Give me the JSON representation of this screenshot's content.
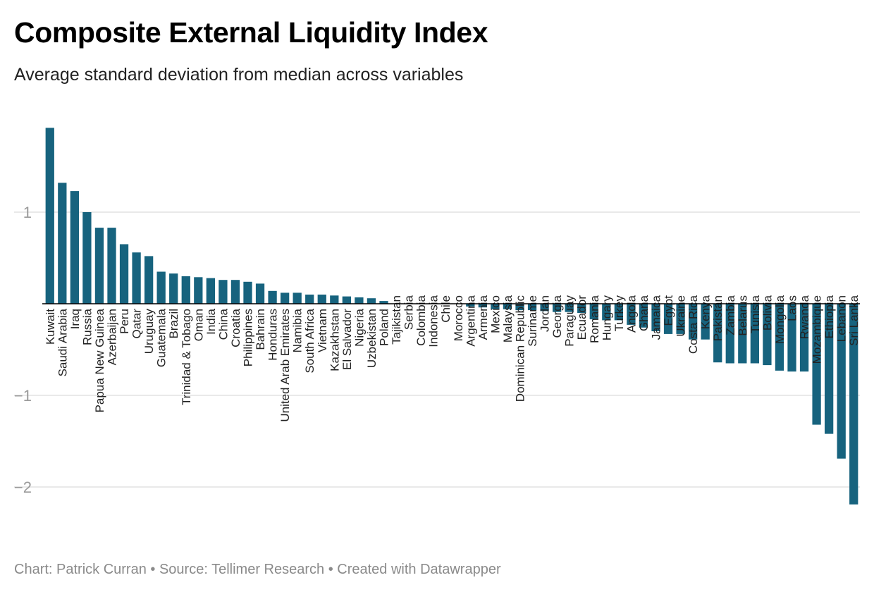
{
  "header": {
    "title": "Composite External Liquidity Index",
    "subtitle": "Average standard deviation from median across variables"
  },
  "footer": {
    "credit": "Chart: Patrick Curran",
    "separator": " • ",
    "source": "Source: Tellimer Research",
    "tool": "Created with Datawrapper"
  },
  "colors": {
    "bar": "#17637e",
    "grid": "#e2e2e2",
    "baseline": "#000000"
  },
  "chart_data": {
    "type": "bar",
    "title": "Composite External Liquidity Index",
    "subtitle": "Average standard deviation from median across variables",
    "xlabel": "",
    "ylabel": "",
    "ylim": [
      -2.2,
      1.95
    ],
    "yticks": [
      {
        "value": 1,
        "label": "1"
      },
      {
        "value": -1,
        "label": "−1"
      },
      {
        "value": -2,
        "label": "−2"
      }
    ],
    "grid": true,
    "categories": [
      "Kuwait",
      "Saudi Arabia",
      "Iraq",
      "Russia",
      "Papua New Guinea",
      "Azerbaijan",
      "Peru",
      "Qatar",
      "Uruguay",
      "Guatemala",
      "Brazil",
      "Trinidad & Tobago",
      "Oman",
      "India",
      "China",
      "Croatia",
      "Philippines",
      "Bahrain",
      "Honduras",
      "United Arab Emirates",
      "Namibia",
      "South Africa",
      "Vietnam",
      "Kazakhstan",
      "El Salvador",
      "Nigeria",
      "Uzbekistan",
      "Poland",
      "Tajikistan",
      "Serbia",
      "Colombia",
      "Indonesia",
      "Chile",
      "Morocco",
      "Argentina",
      "Armenia",
      "Mexico",
      "Malaysia",
      "Dominican Republic",
      "Suriname",
      "Jordan",
      "Georgia",
      "Paraguay",
      "Ecuador",
      "Romania",
      "Hungary",
      "Turkey",
      "Angola",
      "Ghana",
      "Jamaica",
      "Egypt",
      "Ukraine",
      "Costa Rica",
      "Kenya",
      "Pakistan",
      "Zambia",
      "Belarus",
      "Tunisia",
      "Bolivia",
      "Mongolia",
      "Laos",
      "Rwanda",
      "Mozambique",
      "Ethiopia",
      "Lebanon",
      "Sri Lanka"
    ],
    "values": [
      1.92,
      1.32,
      1.23,
      1.0,
      0.83,
      0.83,
      0.65,
      0.56,
      0.52,
      0.35,
      0.33,
      0.3,
      0.29,
      0.28,
      0.26,
      0.26,
      0.24,
      0.22,
      0.14,
      0.12,
      0.12,
      0.1,
      0.1,
      0.09,
      0.08,
      0.07,
      0.06,
      0.03,
      0.0,
      0.0,
      0.0,
      0.0,
      0.0,
      0.0,
      -0.03,
      -0.04,
      -0.06,
      -0.06,
      -0.07,
      -0.07,
      -0.08,
      -0.09,
      -0.09,
      -0.1,
      -0.17,
      -0.18,
      -0.18,
      -0.23,
      -0.26,
      -0.3,
      -0.33,
      -0.33,
      -0.39,
      -0.39,
      -0.64,
      -0.65,
      -0.65,
      -0.65,
      -0.67,
      -0.73,
      -0.74,
      -0.74,
      -1.32,
      -1.42,
      -1.69,
      -2.19
    ]
  }
}
